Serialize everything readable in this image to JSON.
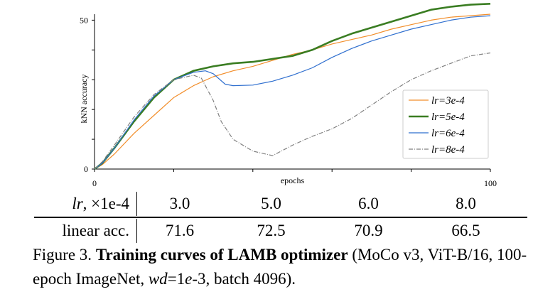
{
  "chart_data": {
    "type": "line",
    "title": "",
    "xlabel": "epochs",
    "ylabel": "kNN accuracy",
    "xlim": [
      0,
      100
    ],
    "ylim": [
      0,
      52
    ],
    "x_tick_labels": [
      "0",
      "100"
    ],
    "y_tick_labels": [
      "0",
      "50"
    ],
    "x_tick_values": [
      0,
      20,
      40,
      60,
      80,
      100
    ],
    "y_tick_values": [
      0,
      10,
      20,
      30,
      40,
      50
    ],
    "grid": false,
    "legend_position": "right",
    "series": [
      {
        "name": "lr=3e-4",
        "color": "#f28e2b",
        "style": "solid",
        "x": [
          0,
          2,
          5,
          10,
          15,
          20,
          25,
          30,
          35,
          40,
          45,
          50,
          55,
          60,
          65,
          70,
          75,
          80,
          85,
          90,
          95,
          100
        ],
        "y": [
          0,
          1.5,
          5,
          12,
          18,
          24,
          28,
          31,
          33,
          34.5,
          36.5,
          38.5,
          40,
          42,
          43.5,
          45,
          47,
          48.5,
          50,
          51,
          51.5,
          52
        ]
      },
      {
        "name": "lr=5e-4",
        "color": "#3a7d22",
        "style": "solid",
        "x": [
          0,
          2,
          5,
          10,
          15,
          20,
          25,
          30,
          35,
          40,
          45,
          50,
          55,
          60,
          65,
          70,
          75,
          80,
          85,
          90,
          95,
          100
        ],
        "y": [
          0,
          2,
          7,
          16,
          24,
          30,
          33,
          34.5,
          35.5,
          36,
          37,
          38,
          40,
          43,
          45.5,
          47.5,
          49.5,
          51.5,
          53.5,
          54.5,
          55.2,
          55.5
        ]
      },
      {
        "name": "lr=6e-4",
        "color": "#2f6fcf",
        "style": "solid",
        "x": [
          0,
          2,
          5,
          10,
          15,
          20,
          25,
          28,
          30,
          33,
          35,
          40,
          45,
          50,
          55,
          60,
          65,
          70,
          75,
          80,
          85,
          90,
          95,
          100
        ],
        "y": [
          0,
          2,
          7,
          16.5,
          24.5,
          30,
          32.5,
          33,
          32,
          28.5,
          28,
          28.2,
          29.5,
          31.5,
          34,
          37.5,
          40.5,
          43,
          45,
          47,
          48.5,
          50,
          51,
          51.5
        ]
      },
      {
        "name": "lr=8e-4",
        "color": "#808080",
        "style": "dashdot",
        "x": [
          0,
          2,
          5,
          10,
          15,
          20,
          25,
          27,
          30,
          32,
          35,
          40,
          45,
          50,
          55,
          60,
          65,
          70,
          75,
          80,
          85,
          90,
          95,
          100
        ],
        "y": [
          0,
          2.5,
          8,
          17.5,
          25,
          30,
          31.5,
          30.5,
          23,
          16,
          10,
          6,
          4.5,
          8,
          11,
          13.5,
          17,
          21.5,
          26,
          30,
          33,
          35.5,
          38,
          39
        ]
      }
    ],
    "table": {
      "header_label": ", ×1e-4",
      "header_label_italic": "lr",
      "row_label": "linear acc.",
      "lr_values": [
        "3.0",
        "5.0",
        "6.0",
        "8.0"
      ],
      "accuracies": [
        "71.6",
        "72.5",
        "70.9",
        "66.5"
      ]
    }
  },
  "caption": {
    "prefix": "Figure 3. ",
    "bold": "Training curves of LAMB optimizer",
    "rest_1": " (MoCo v3, ViT-B/16, 100-epoch ImageNet, ",
    "wd_symbol": "wd",
    "rest_2": "=1",
    "e_symbol": "e",
    "rest_3": "-3, batch 4096)."
  }
}
